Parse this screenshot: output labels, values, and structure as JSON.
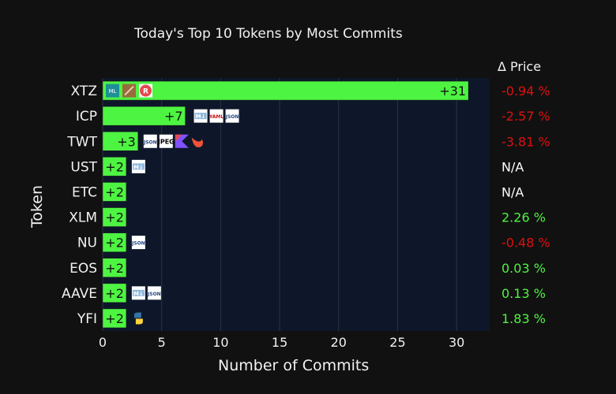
{
  "chart_data": {
    "type": "bar",
    "orientation": "horizontal",
    "title": "Today's Top 10 Tokens by Most Commits",
    "xlabel": "Number of Commits",
    "ylabel": "Token",
    "xlim": [
      0,
      32.8
    ],
    "xticks": [
      0,
      5,
      10,
      15,
      20,
      25,
      30
    ],
    "grid": true,
    "categories": [
      "XTZ",
      "ICP",
      "TWT",
      "UST",
      "ETC",
      "XLM",
      "NU",
      "EOS",
      "AAVE",
      "YFI"
    ],
    "values": [
      31,
      7,
      3,
      2,
      2,
      2,
      2,
      2,
      2,
      2
    ],
    "value_labels": [
      "+31",
      "+7",
      "+3",
      "+2",
      "+2",
      "+2",
      "+2",
      "+2",
      "+2",
      "+2"
    ],
    "bar_color": "#4ef442",
    "plot_bg_color": "#0d1729",
    "language_icons": [
      [
        "ocaml-icon",
        "rust-icon",
        "rescript-icon"
      ],
      [
        "markdown-icon",
        "yaml-icon",
        "json-icon"
      ],
      [
        "json-icon",
        "jpeg-icon",
        "kotlin-icon",
        "swift-icon"
      ],
      [
        "markdown-icon"
      ],
      [],
      [],
      [
        "json-icon"
      ],
      [],
      [
        "markdown-icon",
        "json-icon"
      ],
      [
        "python-icon"
      ]
    ],
    "icon_text": {
      "json-icon": "JSON",
      "yaml-icon": "YAML",
      "jpeg-icon": "JPEG",
      "markdown-icon": "M↓",
      "ocaml-icon": "ML",
      "rescript-icon": "R"
    }
  },
  "price_panel": {
    "header": "Δ Price",
    "changes": [
      "-0.94 %",
      "-2.57 %",
      "-3.81 %",
      "N/A",
      "N/A",
      "2.26 %",
      "-0.48 %",
      "0.03 %",
      "0.13 %",
      "1.83 %"
    ],
    "colors": {
      "negative": "#dd1111",
      "positive": "#4ef442",
      "neutral": "#ffffff"
    }
  }
}
